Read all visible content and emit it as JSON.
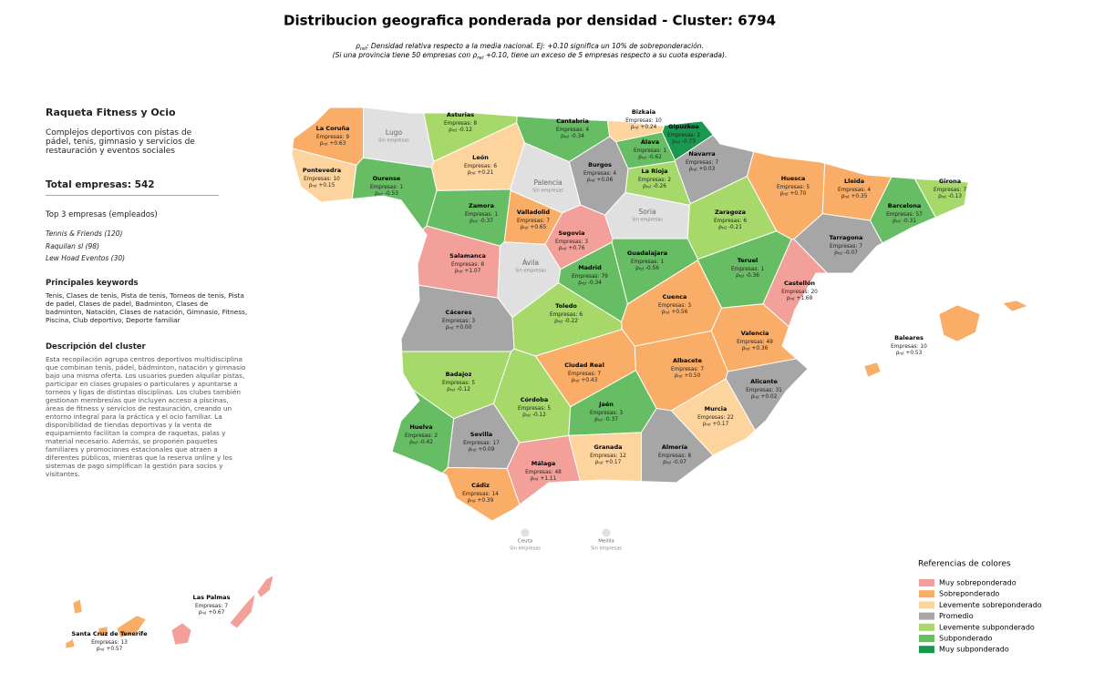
{
  "title": "Distribucion geografica ponderada por densidad - Cluster: 6794",
  "labels": {
    "rho_symbol": "ρ",
    "rho_sub": "rel",
    "companies": "Empresas:",
    "no_data": "Sin empresas"
  },
  "subtitle": {
    "line1": ": Densidad relativa respecto a la media nacional. Ej: +0.10 significa un 10% de sobreponderación.",
    "line2a": "(Si una provincia tiene 50 empresas con ",
    "line2b": " +0.10, tiene un exceso de 5 empresas respecto a su cuota esperada)."
  },
  "panel": {
    "name": "Raqueta Fitness y Ocio",
    "summary": "Complejos deportivos con pistas de pádel, tenis, gimnasio y servicios de restauración y eventos sociales",
    "total": "Total empresas: 542",
    "top_title": "Top 3 empresas (empleados)",
    "top": [
      "Tennis & Friends (120)",
      "Raquilan sl (98)",
      "Lew Hoad Eventos (30)"
    ],
    "keywords_title": "Principales keywords",
    "keywords": "Tenis, Clases de tenis, Pista de tenis, Torneos de tenis, Pista de padel, Clases de padel, Badminton, Clases de badminton, Natación, Clases de natación, Gimnasio, Fitness, Piscina, Club deportivo, Deporte familiar",
    "description_title": "Descripción del cluster",
    "description": "Esta recopilación agrupa centros deportivos multidisciplina que combinan tenis, pádel, bádminton, natación y gimnasio bajo una misma oferta. Los usuarios pueden alquilar pistas, participar en clases grupales o particulares y apuntarse a torneos y ligas de distintas disciplinas. Los clubes también gestionan membresías que incluyen acceso a piscinas, áreas de fitness y servicios de restauración, creando un entorno integral para la práctica y el ocio familiar. La disponibilidad de tiendas deportivas y la venta de equipamiento facilitan la compra de raquetas, palas y material necesario. Además, se proponen paquetes familiares y promociones estacionales que atraen a diferentes públicos, mientras que la reserva online y los sistemas de pago simplifican la gestión para socios y visitantes."
  },
  "legend": {
    "title": "Referencias de colores",
    "items": [
      {
        "name": "Muy sobreponderado",
        "color": "#f4a09a"
      },
      {
        "name": "Sobreponderado",
        "color": "#f9ad66"
      },
      {
        "name": "Levemente sobreponderado",
        "color": "#fdd49e"
      },
      {
        "name": "Promedio",
        "color": "#a6a6a6"
      },
      {
        "name": "Levemente subponderado",
        "color": "#a6d96a"
      },
      {
        "name": "Subponderado",
        "color": "#66bd63"
      },
      {
        "name": "Muy subponderado",
        "color": "#1a9850"
      }
    ]
  },
  "provinces": [
    {
      "name": "La Coruña",
      "companies": 9,
      "rho": "+0.63",
      "category": 1
    },
    {
      "name": "Lugo",
      "companies": null,
      "rho": null,
      "category": null
    },
    {
      "name": "Asturias",
      "companies": 8,
      "rho": "-0.12",
      "category": 4
    },
    {
      "name": "Cantabria",
      "companies": 4,
      "rho": "-0.34",
      "category": 5
    },
    {
      "name": "Bizkaia",
      "companies": 10,
      "rho": "+0.24",
      "category": 2
    },
    {
      "name": "Gipuzkoa",
      "companies": 2,
      "rho": "-0.73",
      "category": 6
    },
    {
      "name": "Álava",
      "companies": 1,
      "rho": "-0.62",
      "category": 5
    },
    {
      "name": "Navarra",
      "companies": 7,
      "rho": "+0.03",
      "category": 3
    },
    {
      "name": "La Rioja",
      "companies": 2,
      "rho": "-0.26",
      "category": 4
    },
    {
      "name": "Burgos",
      "companies": 4,
      "rho": "+0.06",
      "category": 3
    },
    {
      "name": "Palencia",
      "companies": null,
      "rho": null,
      "category": null
    },
    {
      "name": "León",
      "companies": 6,
      "rho": "+0.21",
      "category": 2
    },
    {
      "name": "Ourense",
      "companies": 1,
      "rho": "-0.53",
      "category": 5
    },
    {
      "name": "Pontevedra",
      "companies": 10,
      "rho": "+0.15",
      "category": 2
    },
    {
      "name": "Zamora",
      "companies": 1,
      "rho": "-0.37",
      "category": 5
    },
    {
      "name": "Valladolid",
      "companies": 7,
      "rho": "+0.65",
      "category": 1
    },
    {
      "name": "Segovia",
      "companies": 3,
      "rho": "+0.76",
      "category": 0
    },
    {
      "name": "Soria",
      "companies": null,
      "rho": null,
      "category": null
    },
    {
      "name": "Huesca",
      "companies": 5,
      "rho": "+0.70",
      "category": 1
    },
    {
      "name": "Lleida",
      "companies": 4,
      "rho": "+0.35",
      "category": 1
    },
    {
      "name": "Girona",
      "companies": 7,
      "rho": "-0.13",
      "category": 4
    },
    {
      "name": "Barcelona",
      "companies": 57,
      "rho": "-0.31",
      "category": 5
    },
    {
      "name": "Zaragoza",
      "companies": 6,
      "rho": "-0.21",
      "category": 4
    },
    {
      "name": "Tarragona",
      "companies": 7,
      "rho": "-0.07",
      "category": 3
    },
    {
      "name": "Guadalajara",
      "companies": 1,
      "rho": "-0.56",
      "category": 5
    },
    {
      "name": "Teruel",
      "companies": 1,
      "rho": "-0.36",
      "category": 5
    },
    {
      "name": "Castellón",
      "companies": 20,
      "rho": "+1.68",
      "category": 0
    },
    {
      "name": "Salamanca",
      "companies": 8,
      "rho": "+1.07",
      "category": 0
    },
    {
      "name": "Ávila",
      "companies": null,
      "rho": null,
      "category": null
    },
    {
      "name": "Madrid",
      "companies": 79,
      "rho": "-0.34",
      "category": 5
    },
    {
      "name": "Cáceres",
      "companies": 3,
      "rho": "+0.00",
      "category": 3
    },
    {
      "name": "Toledo",
      "companies": 6,
      "rho": "-0.22",
      "category": 4
    },
    {
      "name": "Cuenca",
      "companies": 3,
      "rho": "+0.56",
      "category": 1
    },
    {
      "name": "Valencia",
      "companies": 49,
      "rho": "+0.36",
      "category": 1
    },
    {
      "name": "Badajoz",
      "companies": 5,
      "rho": "-0.12",
      "category": 4
    },
    {
      "name": "Ciudad Real",
      "companies": 7,
      "rho": "+0.43",
      "category": 1
    },
    {
      "name": "Albacete",
      "companies": 7,
      "rho": "+0.50",
      "category": 1
    },
    {
      "name": "Alicante",
      "companies": 31,
      "rho": "+0.02",
      "category": 3
    },
    {
      "name": "Córdoba",
      "companies": 5,
      "rho": "-0.12",
      "category": 4
    },
    {
      "name": "Jaén",
      "companies": 3,
      "rho": "-0.37",
      "category": 5
    },
    {
      "name": "Murcia",
      "companies": 22,
      "rho": "+0.17",
      "category": 2
    },
    {
      "name": "Huelva",
      "companies": 2,
      "rho": "-0.42",
      "category": 5
    },
    {
      "name": "Sevilla",
      "companies": 17,
      "rho": "+0.09",
      "category": 3
    },
    {
      "name": "Granada",
      "companies": 12,
      "rho": "+0.17",
      "category": 2
    },
    {
      "name": "Almería",
      "companies": 8,
      "rho": "-0.07",
      "category": 3
    },
    {
      "name": "Málaga",
      "companies": 48,
      "rho": "+1.11",
      "category": 0
    },
    {
      "name": "Cádiz",
      "companies": 14,
      "rho": "+0.39",
      "category": 1
    },
    {
      "name": "Baleares",
      "companies": 10,
      "rho": "+0.53",
      "category": 1
    },
    {
      "name": "Las Palmas",
      "companies": 7,
      "rho": "+0.67",
      "category": 0
    },
    {
      "name": "Santa Cruz de Tenerife",
      "companies": 13,
      "rho": "+0.57",
      "category": 1
    },
    {
      "name": "Ceuta",
      "companies": null,
      "rho": null,
      "category": null
    },
    {
      "name": "Melilla",
      "companies": null,
      "rho": null,
      "category": null
    }
  ]
}
